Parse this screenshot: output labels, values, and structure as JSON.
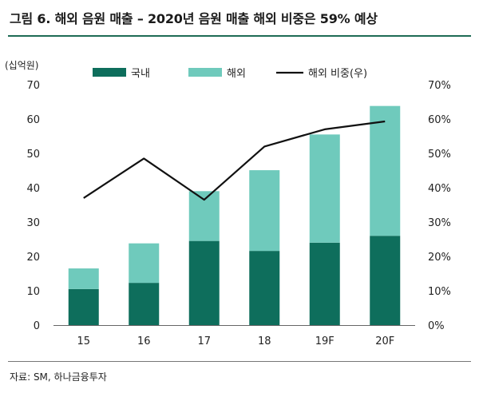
{
  "header": {
    "title": "그림 6. 해외 음원 매출 – 2020년 음원 매출 해외 비중은 59% 예상"
  },
  "footer": {
    "source": "자료: SM, 하나금융투자"
  },
  "chart_data": {
    "type": "bar",
    "stacked": true,
    "categories": [
      "15",
      "16",
      "17",
      "18",
      "19F",
      "20F"
    ],
    "series": [
      {
        "name": "국내",
        "kind": "bar",
        "axis": "left",
        "color": "#0e6e5c",
        "values": [
          10.5,
          12.3,
          24.5,
          21.6,
          24.0,
          26.0
        ]
      },
      {
        "name": "해외",
        "kind": "bar",
        "axis": "left",
        "color": "#6fcabc",
        "values": [
          6.0,
          11.5,
          14.5,
          23.5,
          31.5,
          37.8
        ]
      },
      {
        "name": "해외 비중(우)",
        "kind": "line",
        "axis": "right",
        "color": "#111111",
        "values": [
          37.0,
          48.5,
          36.5,
          52.0,
          57.0,
          59.3
        ]
      }
    ],
    "ylabel": "(십억원)",
    "ylim": [
      0,
      70
    ],
    "yticks": [
      "0",
      "10",
      "20",
      "30",
      "40",
      "50",
      "60",
      "70"
    ],
    "y2lim": [
      0,
      70
    ],
    "y2ticks": [
      "0%",
      "10%",
      "20%",
      "30%",
      "40%",
      "50%",
      "60%",
      "70%"
    ],
    "legend_position": "top",
    "grid": false
  }
}
